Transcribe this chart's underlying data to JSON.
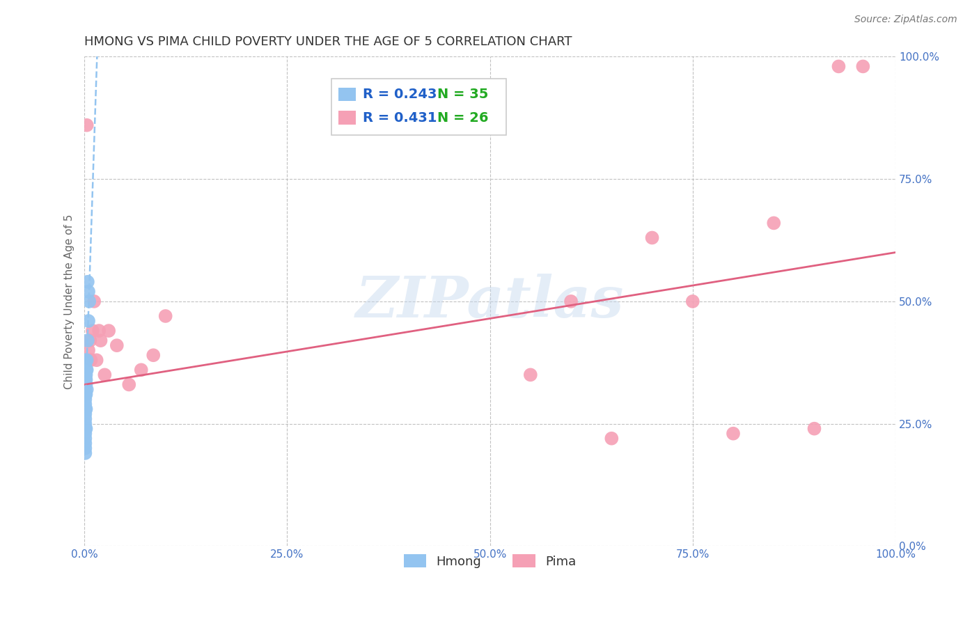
{
  "title": "HMONG VS PIMA CHILD POVERTY UNDER THE AGE OF 5 CORRELATION CHART",
  "source": "Source: ZipAtlas.com",
  "ylabel": "Child Poverty Under the Age of 5",
  "xlim": [
    0,
    1.0
  ],
  "ylim": [
    0,
    1.0
  ],
  "xticks": [
    0.0,
    0.25,
    0.5,
    0.75,
    1.0
  ],
  "yticks": [
    0.0,
    0.25,
    0.5,
    0.75,
    1.0
  ],
  "xticklabels": [
    "0.0%",
    "25.0%",
    "50.0%",
    "75.0%",
    "100.0%"
  ],
  "yticklabels": [
    "0.0%",
    "25.0%",
    "50.0%",
    "75.0%",
    "100.0%"
  ],
  "tick_color": "#4472c4",
  "hmong_color": "#93c4f0",
  "pima_color": "#f5a0b5",
  "hmong_R": 0.243,
  "hmong_N": 35,
  "pima_R": 0.431,
  "pima_N": 26,
  "legend_R_color": "#2060c8",
  "legend_N_color": "#22aa22",
  "watermark": "ZIPatlas",
  "background_color": "#ffffff",
  "grid_color": "#bbbbbb",
  "hmong_scatter_x": [
    0.001,
    0.001,
    0.001,
    0.001,
    0.001,
    0.001,
    0.001,
    0.001,
    0.001,
    0.001,
    0.001,
    0.001,
    0.001,
    0.001,
    0.001,
    0.001,
    0.001,
    0.001,
    0.001,
    0.001,
    0.002,
    0.002,
    0.002,
    0.002,
    0.002,
    0.002,
    0.002,
    0.003,
    0.003,
    0.003,
    0.004,
    0.004,
    0.005,
    0.005,
    0.006
  ],
  "hmong_scatter_y": [
    0.37,
    0.38,
    0.36,
    0.35,
    0.34,
    0.33,
    0.32,
    0.31,
    0.3,
    0.29,
    0.28,
    0.27,
    0.26,
    0.25,
    0.24,
    0.23,
    0.22,
    0.21,
    0.2,
    0.19,
    0.36,
    0.35,
    0.34,
    0.33,
    0.31,
    0.28,
    0.24,
    0.38,
    0.36,
    0.32,
    0.54,
    0.42,
    0.52,
    0.46,
    0.5
  ],
  "pima_scatter_x": [
    0.003,
    0.005,
    0.007,
    0.008,
    0.01,
    0.012,
    0.015,
    0.018,
    0.02,
    0.025,
    0.03,
    0.04,
    0.055,
    0.07,
    0.085,
    0.1,
    0.55,
    0.6,
    0.65,
    0.7,
    0.75,
    0.8,
    0.85,
    0.9,
    0.93,
    0.96
  ],
  "pima_scatter_y": [
    0.86,
    0.4,
    0.42,
    0.38,
    0.44,
    0.5,
    0.38,
    0.44,
    0.42,
    0.35,
    0.44,
    0.41,
    0.33,
    0.36,
    0.39,
    0.47,
    0.35,
    0.5,
    0.22,
    0.63,
    0.5,
    0.23,
    0.66,
    0.24,
    0.98,
    0.98
  ],
  "hmong_trend_x0": 0.001,
  "hmong_trend_x1": 0.032,
  "pima_trend_x0": 0.0,
  "pima_trend_x1": 1.0,
  "pima_trend_y0": 0.33,
  "pima_trend_y1": 0.6
}
